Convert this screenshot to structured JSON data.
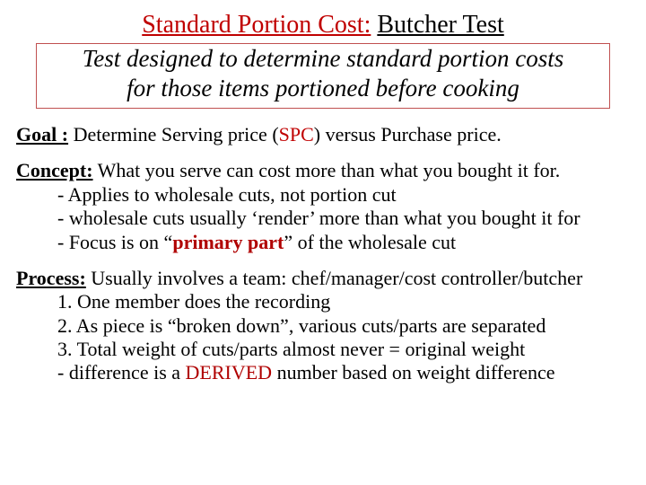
{
  "title": {
    "red_underlined": "Standard Portion Cost:",
    "black_underlined": "Butcher Test"
  },
  "box": {
    "line1": "Test designed to determine standard portion costs",
    "line2": "for those items portioned before cooking"
  },
  "goal": {
    "label": "Goal :",
    "before_spc": " Determine Serving price  (",
    "spc": "SPC",
    "after_spc": ") versus Purchase price."
  },
  "concept": {
    "label": "Concept:",
    "lead": " What you serve can cost more than what you bought it for.",
    "b1": "- Applies to wholesale cuts, not portion cut",
    "b2": "- wholesale cuts usually ‘render’ more than what you bought it for",
    "b3_pre": "- Focus is on “",
    "b3_prim": "primary part",
    "b3_post": "” of the wholesale cut"
  },
  "process": {
    "label": "Process:",
    "lead": " Usually involves a team: chef/manager/cost controller/butcher",
    "n1": "1.  One member does the recording",
    "n2": "2.  As piece is “broken down”, various cuts/parts are separated",
    "n3": "3.  Total weight of cuts/parts almost never = original weight",
    "diff_pre": " - difference is a ",
    "diff_word": "DERIVED",
    "diff_post": " number based on weight difference"
  },
  "colors": {
    "title_red": "#c00000",
    "box_border": "#c05050",
    "primary_red": "#b00000",
    "text": "#000000",
    "background": "#ffffff"
  },
  "fonts": {
    "title_size_pt": 28,
    "box_size_pt": 27,
    "body_size_pt": 22,
    "family": "Times New Roman"
  }
}
